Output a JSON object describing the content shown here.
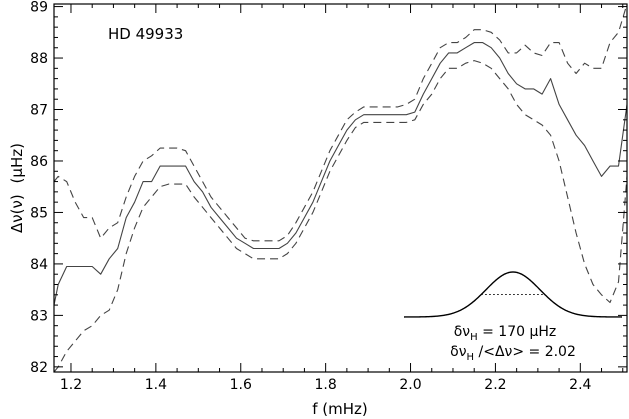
{
  "chart_data": {
    "type": "line",
    "title": "",
    "star_label": "HD 49933",
    "xlabel": "f (mHz)",
    "ylabel": {
      "main": "Δν(ν)",
      "unit": "(μHz)"
    },
    "xlim": [
      1.16,
      2.51
    ],
    "ylim": [
      81.9,
      89.05
    ],
    "x_ticks": [
      1.2,
      1.4,
      1.6,
      1.8,
      2.0,
      2.2,
      2.4
    ],
    "x_tick_labels": [
      "1.2",
      "1.4",
      "1.6",
      "1.8",
      "2.0",
      "2.2",
      "2.4"
    ],
    "y_ticks": [
      82,
      83,
      84,
      85,
      86,
      87,
      88,
      89
    ],
    "y_tick_labels": [
      "82",
      "83",
      "84",
      "85",
      "86",
      "87",
      "88",
      "89"
    ],
    "grid": false,
    "series": [
      {
        "style": "solid",
        "color": "#444444",
        "x": [
          1.16,
          1.17,
          1.19,
          1.21,
          1.23,
          1.25,
          1.27,
          1.29,
          1.31,
          1.33,
          1.35,
          1.37,
          1.39,
          1.41,
          1.43,
          1.45,
          1.47,
          1.49,
          1.51,
          1.53,
          1.55,
          1.57,
          1.59,
          1.61,
          1.63,
          1.65,
          1.67,
          1.69,
          1.71,
          1.73,
          1.75,
          1.77,
          1.79,
          1.81,
          1.83,
          1.85,
          1.87,
          1.89,
          1.91,
          1.93,
          1.95,
          1.97,
          1.99,
          2.01,
          2.03,
          2.05,
          2.07,
          2.09,
          2.11,
          2.13,
          2.15,
          2.17,
          2.19,
          2.21,
          2.23,
          2.25,
          2.27,
          2.29,
          2.31,
          2.33,
          2.35,
          2.37,
          2.39,
          2.41,
          2.43,
          2.45,
          2.47,
          2.49,
          2.51
        ],
        "y": [
          83.2,
          83.6,
          83.95,
          83.95,
          83.95,
          83.95,
          83.8,
          84.1,
          84.3,
          84.9,
          85.2,
          85.6,
          85.6,
          85.9,
          85.9,
          85.9,
          85.9,
          85.6,
          85.4,
          85.1,
          84.9,
          84.7,
          84.5,
          84.4,
          84.3,
          84.3,
          84.3,
          84.3,
          84.4,
          84.6,
          84.9,
          85.2,
          85.6,
          86.0,
          86.3,
          86.6,
          86.8,
          86.9,
          86.9,
          86.9,
          86.9,
          86.9,
          86.9,
          86.95,
          87.3,
          87.6,
          87.9,
          88.1,
          88.1,
          88.2,
          88.3,
          88.3,
          88.2,
          88.0,
          87.7,
          87.5,
          87.4,
          87.4,
          87.3,
          87.6,
          87.1,
          86.8,
          86.5,
          86.3,
          86.0,
          85.7,
          85.9,
          85.9,
          87.1
        ]
      },
      {
        "style": "dashed",
        "color": "#444444",
        "x": [
          1.16,
          1.17,
          1.19,
          1.21,
          1.23,
          1.25,
          1.27,
          1.29,
          1.31,
          1.33,
          1.35,
          1.37,
          1.39,
          1.41,
          1.43,
          1.45,
          1.47,
          1.49,
          1.51,
          1.53,
          1.55,
          1.57,
          1.59,
          1.61,
          1.63,
          1.65,
          1.67,
          1.69,
          1.71,
          1.73,
          1.75,
          1.77,
          1.79,
          1.81,
          1.83,
          1.85,
          1.87,
          1.89,
          1.91,
          1.93,
          1.95,
          1.97,
          1.99,
          2.01,
          2.03,
          2.05,
          2.07,
          2.09,
          2.11,
          2.13,
          2.15,
          2.17,
          2.19,
          2.21,
          2.23,
          2.25,
          2.27,
          2.29,
          2.31,
          2.33,
          2.35,
          2.37,
          2.39,
          2.41,
          2.43,
          2.45,
          2.47,
          2.49,
          2.51
        ],
        "y": [
          85.6,
          85.7,
          85.6,
          85.2,
          84.9,
          84.9,
          84.5,
          84.7,
          84.8,
          85.3,
          85.7,
          86.0,
          86.1,
          86.25,
          86.25,
          86.25,
          86.2,
          85.9,
          85.6,
          85.3,
          85.1,
          84.9,
          84.7,
          84.5,
          84.45,
          84.45,
          84.45,
          84.45,
          84.55,
          84.8,
          85.1,
          85.4,
          85.8,
          86.2,
          86.5,
          86.8,
          86.95,
          87.05,
          87.05,
          87.05,
          87.05,
          87.05,
          87.1,
          87.2,
          87.6,
          87.9,
          88.2,
          88.3,
          88.3,
          88.4,
          88.55,
          88.55,
          88.5,
          88.35,
          88.1,
          88.1,
          88.25,
          88.1,
          88.05,
          88.3,
          88.3,
          87.9,
          87.7,
          87.9,
          87.8,
          87.8,
          88.3,
          88.5,
          89.05
        ]
      },
      {
        "style": "dashed",
        "color": "#444444",
        "x": [
          1.16,
          1.17,
          1.19,
          1.21,
          1.23,
          1.25,
          1.27,
          1.29,
          1.31,
          1.33,
          1.35,
          1.37,
          1.39,
          1.41,
          1.43,
          1.45,
          1.47,
          1.49,
          1.51,
          1.53,
          1.55,
          1.57,
          1.59,
          1.61,
          1.63,
          1.65,
          1.67,
          1.69,
          1.71,
          1.73,
          1.75,
          1.77,
          1.79,
          1.81,
          1.83,
          1.85,
          1.87,
          1.89,
          1.91,
          1.93,
          1.95,
          1.97,
          1.99,
          2.01,
          2.03,
          2.05,
          2.07,
          2.09,
          2.11,
          2.13,
          2.15,
          2.17,
          2.19,
          2.21,
          2.23,
          2.25,
          2.27,
          2.29,
          2.31,
          2.33,
          2.35,
          2.37,
          2.39,
          2.41,
          2.43,
          2.45,
          2.47,
          2.49,
          2.51
        ],
        "y": [
          81.9,
          82.0,
          82.3,
          82.5,
          82.7,
          82.8,
          83.0,
          83.1,
          83.5,
          84.2,
          84.7,
          85.1,
          85.3,
          85.5,
          85.55,
          85.55,
          85.55,
          85.3,
          85.1,
          84.9,
          84.7,
          84.5,
          84.3,
          84.2,
          84.1,
          84.1,
          84.1,
          84.1,
          84.2,
          84.4,
          84.7,
          85.0,
          85.4,
          85.8,
          86.1,
          86.4,
          86.65,
          86.75,
          86.75,
          86.75,
          86.75,
          86.75,
          86.75,
          86.8,
          87.1,
          87.3,
          87.6,
          87.8,
          87.8,
          87.9,
          87.95,
          87.9,
          87.8,
          87.6,
          87.4,
          87.1,
          86.9,
          86.8,
          86.7,
          86.5,
          86.0,
          85.3,
          84.6,
          84.0,
          83.6,
          83.4,
          83.25,
          83.65,
          85.7
        ]
      }
    ],
    "annotations": {
      "profile_formula_1": {
        "symbol": "δν",
        "sub": "H",
        "rest": " = 170 μHz"
      },
      "profile_formula_2": {
        "symbol": "δν",
        "sub": "H",
        "rest": " /<Δν> = 2.02"
      }
    }
  }
}
